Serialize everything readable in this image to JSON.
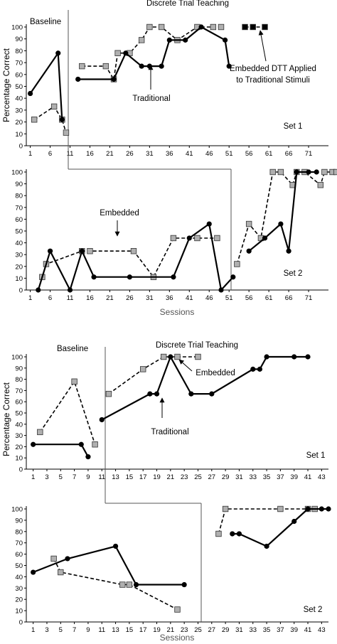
{
  "chart_data": [
    {
      "type": "line",
      "panel": "Participant 1 - Set 1",
      "phase_labels": [
        "Baseline",
        "Discrete Trial Teaching"
      ],
      "set_label": "Set 1",
      "ylabel": "Percentage Correct",
      "ylim": [
        0,
        100
      ],
      "yticks": [
        "0",
        "10",
        "20",
        "30",
        "40",
        "50",
        "60",
        "70",
        "80",
        "90",
        "100"
      ],
      "xticks": [
        "1",
        "6",
        "11",
        "16",
        "21",
        "26",
        "31",
        "36",
        "41",
        "46",
        "51",
        "56",
        "61",
        "66",
        "71"
      ],
      "xlim": [
        0,
        76
      ],
      "annotations": [
        "Traditional",
        "Embedded DTT Applied",
        "to Traditional Stimuli"
      ],
      "series": [
        {
          "name": "Traditional",
          "style": "solid-circle",
          "segments": [
            [
              [
                1,
                44
              ],
              [
                8,
                78
              ],
              [
                9,
                22
              ]
            ],
            [
              [
                13,
                56
              ],
              [
                22,
                56
              ],
              [
                25,
                78
              ],
              [
                29,
                67
              ],
              [
                31,
                67
              ],
              [
                34,
                67
              ],
              [
                36,
                89
              ],
              [
                40,
                89
              ],
              [
                44,
                100
              ],
              [
                50,
                89
              ],
              [
                51,
                67
              ]
            ]
          ]
        },
        {
          "name": "Embedded",
          "style": "dashed-square",
          "segments": [
            [
              [
                2,
                22
              ],
              [
                7,
                33
              ],
              [
                9,
                22
              ],
              [
                10,
                11
              ]
            ],
            [
              [
                14,
                67
              ],
              [
                20,
                67
              ],
              [
                22,
                56
              ],
              [
                23,
                78
              ],
              [
                26,
                78
              ],
              [
                29,
                89
              ],
              [
                31,
                100
              ],
              [
                34,
                100
              ],
              [
                38,
                89
              ],
              [
                43,
                100
              ],
              [
                47,
                100
              ],
              [
                49,
                100
              ]
            ],
            [
              [
                55,
                100
              ],
              [
                57,
                100
              ],
              [
                60,
                100
              ]
            ]
          ]
        }
      ]
    },
    {
      "type": "line",
      "panel": "Participant 1 - Set 2",
      "set_label": "Set 2",
      "xlabel": "Sessions",
      "ylim": [
        0,
        100
      ],
      "yticks": [
        "0",
        "10",
        "20",
        "30",
        "40",
        "50",
        "60",
        "70",
        "80",
        "90",
        "100"
      ],
      "xticks": [
        "1",
        "6",
        "11",
        "16",
        "21",
        "26",
        "31",
        "36",
        "41",
        "46",
        "51",
        "56",
        "61",
        "66",
        "71"
      ],
      "xlim": [
        0,
        76
      ],
      "annotations": [
        "Embedded"
      ],
      "series": [
        {
          "name": "Traditional",
          "style": "solid-circle",
          "segments": [
            [
              [
                3,
                0
              ],
              [
                6,
                33
              ],
              [
                11,
                0
              ],
              [
                14,
                33
              ],
              [
                17,
                11
              ],
              [
                26,
                11
              ],
              [
                37,
                11
              ],
              [
                41,
                44
              ],
              [
                46,
                56
              ],
              [
                49,
                0
              ],
              [
                52,
                11
              ]
            ],
            [
              [
                56,
                33
              ],
              [
                60,
                44
              ],
              [
                64,
                56
              ],
              [
                66,
                33
              ],
              [
                68,
                100
              ],
              [
                71,
                100
              ],
              [
                73,
                100
              ]
            ]
          ]
        },
        {
          "name": "Embedded",
          "style": "dashed-square",
          "segments": [
            [
              [
                4,
                11
              ],
              [
                5,
                22
              ],
              [
                14,
                33
              ],
              [
                16,
                33
              ],
              [
                27,
                33
              ],
              [
                32,
                11
              ],
              [
                37,
                44
              ],
              [
                43,
                44
              ],
              [
                48,
                44
              ]
            ],
            [
              [
                53,
                22
              ],
              [
                56,
                56
              ],
              [
                59,
                44
              ],
              [
                62,
                100
              ],
              [
                64,
                100
              ],
              [
                67,
                89
              ],
              [
                68,
                100
              ],
              [
                70,
                100
              ],
              [
                74,
                89
              ],
              [
                75,
                100
              ],
              [
                77,
                100
              ],
              [
                78,
                100
              ]
            ]
          ]
        }
      ]
    },
    {
      "type": "line",
      "panel": "Participant 2 - Set 1",
      "phase_labels": [
        "Baseline",
        "Discrete Trial Teaching"
      ],
      "set_label": "Set 1",
      "ylabel": "Percentage Correct",
      "ylim": [
        0,
        100
      ],
      "yticks": [
        "0",
        "10",
        "20",
        "30",
        "40",
        "50",
        "60",
        "70",
        "80",
        "90",
        "100"
      ],
      "xticks": [
        "1",
        "3",
        "5",
        "7",
        "9",
        "11",
        "13",
        "15",
        "17",
        "19",
        "21",
        "23",
        "25",
        "27",
        "29",
        "31",
        "33",
        "35",
        "37",
        "39",
        "41",
        "43"
      ],
      "xlim": [
        0,
        44
      ],
      "annotations": [
        "Traditional",
        "Embedded"
      ],
      "series": [
        {
          "name": "Traditional",
          "style": "solid-circle",
          "segments": [
            [
              [
                1,
                22
              ],
              [
                8,
                22
              ],
              [
                9,
                11
              ]
            ],
            [
              [
                11,
                44
              ],
              [
                18,
                67
              ],
              [
                19,
                67
              ],
              [
                21,
                100
              ],
              [
                24,
                67
              ],
              [
                27,
                67
              ],
              [
                33,
                89
              ],
              [
                34,
                89
              ],
              [
                35,
                100
              ],
              [
                39,
                100
              ],
              [
                41,
                100
              ]
            ]
          ]
        },
        {
          "name": "Embedded",
          "style": "dashed-square",
          "segments": [
            [
              [
                2,
                33
              ],
              [
                7,
                78
              ],
              [
                10,
                22
              ]
            ],
            [
              [
                12,
                67
              ],
              [
                17,
                89
              ],
              [
                20,
                100
              ],
              [
                22,
                100
              ],
              [
                25,
                100
              ]
            ]
          ]
        }
      ]
    },
    {
      "type": "line",
      "panel": "Participant 2 - Set 2",
      "set_label": "Set 2",
      "xlabel": "Sessions",
      "ylim": [
        0,
        100
      ],
      "yticks": [
        "0",
        "10",
        "20",
        "30",
        "40",
        "50",
        "60",
        "70",
        "80",
        "90",
        "100"
      ],
      "xticks": [
        "1",
        "3",
        "5",
        "7",
        "9",
        "11",
        "13",
        "15",
        "17",
        "19",
        "21",
        "23",
        "25",
        "27",
        "29",
        "31",
        "33",
        "35",
        "37",
        "39",
        "41",
        "43"
      ],
      "xlim": [
        0,
        44
      ],
      "series": [
        {
          "name": "Traditional",
          "style": "solid-circle",
          "segments": [
            [
              [
                1,
                44
              ],
              [
                6,
                56
              ],
              [
                13,
                67
              ],
              [
                16,
                33
              ],
              [
                23,
                33
              ]
            ],
            [
              [
                30,
                78
              ],
              [
                31,
                78
              ],
              [
                35,
                67
              ],
              [
                39,
                89
              ],
              [
                41,
                100
              ],
              [
                43,
                100
              ],
              [
                44,
                100
              ]
            ]
          ]
        },
        {
          "name": "Embedded",
          "style": "dashed-square",
          "segments": [
            [
              [
                4,
                56
              ],
              [
                5,
                44
              ],
              [
                14,
                33
              ],
              [
                15,
                33
              ],
              [
                22,
                11
              ]
            ],
            [
              [
                28,
                78
              ],
              [
                29,
                100
              ],
              [
                37,
                100
              ],
              [
                41,
                100
              ],
              [
                42,
                100
              ]
            ]
          ]
        }
      ]
    }
  ]
}
